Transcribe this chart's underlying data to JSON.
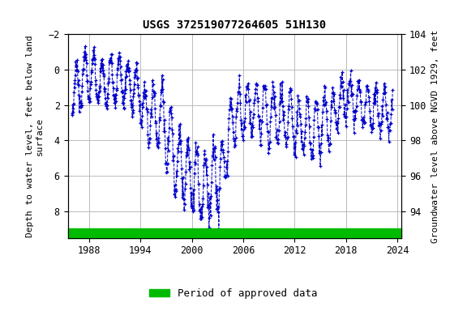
{
  "title": "USGS 372519077264605 51H130",
  "ylabel_left": "Depth to water level, feet below land\nsurface",
  "ylabel_right": "Groundwater level above NGVD 1929, feet",
  "ylim_left": [
    -2,
    9.5
  ],
  "xlim": [
    1985.5,
    2024.5
  ],
  "yticks_left": [
    -2,
    0,
    2,
    4,
    6,
    8
  ],
  "yticks_right": [
    94,
    96,
    98,
    100,
    102,
    104
  ],
  "xticks": [
    1988,
    1994,
    2000,
    2006,
    2012,
    2018,
    2024
  ],
  "line_color": "#0000cc",
  "marker": "+",
  "linestyle": "--",
  "legend_label": "Period of approved data",
  "bar_color": "#00bb00",
  "background_color": "#ffffff",
  "grid_color": "#bbbbbb",
  "title_fontsize": 10,
  "axis_label_fontsize": 8,
  "tick_fontsize": 8.5,
  "legend_fontsize": 9
}
